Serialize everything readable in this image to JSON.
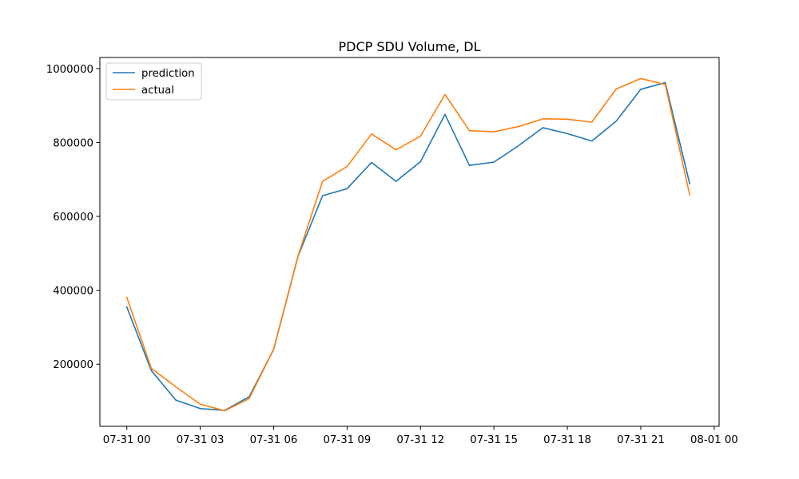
{
  "chart_data": {
    "type": "line",
    "title": "PDCP SDU Volume, DL",
    "xlabel": "",
    "ylabel": "",
    "x": [
      "07-31 00:00",
      "07-31 01:00",
      "07-31 02:00",
      "07-31 03:00",
      "07-31 04:00",
      "07-31 05:00",
      "07-31 06:00",
      "07-31 07:00",
      "07-31 08:00",
      "07-31 09:00",
      "07-31 10:00",
      "07-31 11:00",
      "07-31 12:00",
      "07-31 13:00",
      "07-31 14:00",
      "07-31 15:00",
      "07-31 16:00",
      "07-31 17:00",
      "07-31 18:00",
      "07-31 19:00",
      "07-31 20:00",
      "07-31 21:00",
      "07-31 22:00",
      "07-31 23:00"
    ],
    "x_hours": [
      0,
      1,
      2,
      3,
      4,
      5,
      6,
      7,
      8,
      9,
      10,
      11,
      12,
      13,
      14,
      15,
      16,
      17,
      18,
      19,
      20,
      21,
      22,
      23
    ],
    "xlim_hours": [
      -1.1,
      24.2
    ],
    "x_ticks": [
      {
        "hour": 0,
        "label": "07-31 00"
      },
      {
        "hour": 3,
        "label": "07-31 03"
      },
      {
        "hour": 6,
        "label": "07-31 06"
      },
      {
        "hour": 9,
        "label": "07-31 09"
      },
      {
        "hour": 12,
        "label": "07-31 12"
      },
      {
        "hour": 15,
        "label": "07-31 15"
      },
      {
        "hour": 18,
        "label": "07-31 18"
      },
      {
        "hour": 21,
        "label": "07-31 21"
      },
      {
        "hour": 24,
        "label": "08-01 00"
      }
    ],
    "ylim": [
      32000,
      1030000
    ],
    "y_ticks": [
      200000,
      400000,
      600000,
      800000,
      1000000
    ],
    "y_tick_labels": [
      "200000",
      "400000",
      "600000",
      "800000",
      "1000000"
    ],
    "grid": false,
    "legend_position": "top-left",
    "series": [
      {
        "name": "prediction",
        "color": "#1f77b4",
        "values": [
          355000,
          183000,
          103000,
          80000,
          75000,
          112000,
          240000,
          493000,
          656000,
          675000,
          746000,
          695000,
          748000,
          876000,
          738000,
          747000,
          791000,
          840000,
          824000,
          804000,
          858000,
          944000,
          962000,
          688000
        ]
      },
      {
        "name": "actual",
        "color": "#ff7f0e",
        "values": [
          381000,
          189000,
          139000,
          92000,
          74000,
          107000,
          241000,
          494000,
          695000,
          735000,
          823000,
          780000,
          817000,
          930000,
          832000,
          829000,
          843000,
          864000,
          863000,
          855000,
          945000,
          973000,
          957000,
          658000
        ]
      }
    ]
  }
}
